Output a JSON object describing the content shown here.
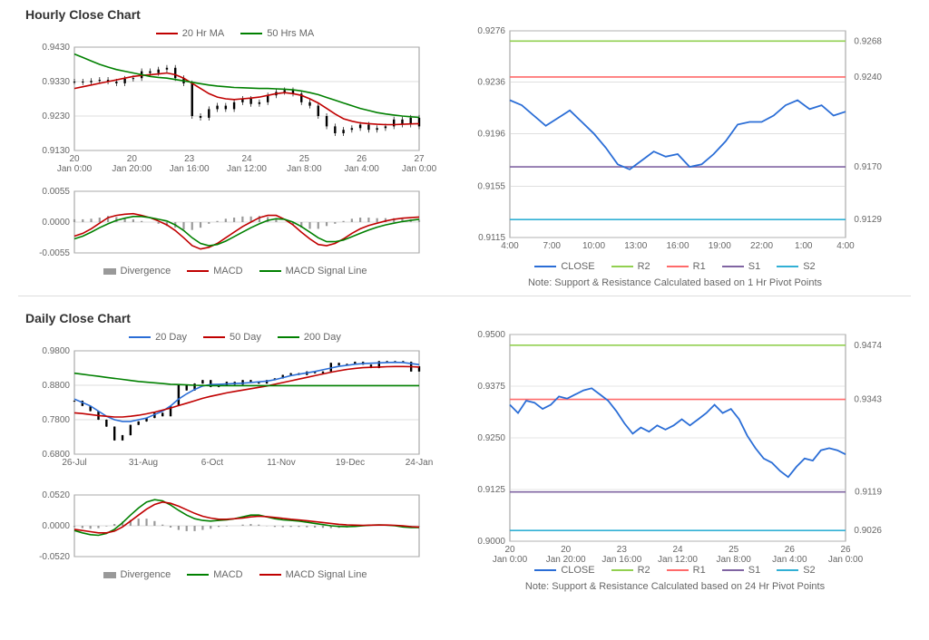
{
  "hourly": {
    "title": "Hourly Close Chart",
    "price": {
      "legend": [
        {
          "label": "20 Hr MA",
          "color": "#c00000"
        },
        {
          "label": "50 Hrs MA",
          "color": "#008000"
        }
      ],
      "ylim": [
        0.913,
        0.943
      ],
      "yticks": [
        0.913,
        0.923,
        0.933,
        0.943
      ],
      "xticks": [
        "20 Jan 0:00",
        "20 Jan 20:00",
        "23 Jan 16:00",
        "24 Jan 12:00",
        "25 Jan 8:00",
        "26 Jan 4:00",
        "27 Jan 0:00"
      ],
      "close": [
        0.933,
        0.9328,
        0.9332,
        0.9335,
        0.933,
        0.9325,
        0.9338,
        0.934,
        0.936,
        0.9355,
        0.9365,
        0.937,
        0.934,
        0.9325,
        0.923,
        0.9225,
        0.925,
        0.926,
        0.925,
        0.927,
        0.928,
        0.9265,
        0.927,
        0.929,
        0.93,
        0.9305,
        0.9295,
        0.927,
        0.926,
        0.923,
        0.92,
        0.918,
        0.919,
        0.9195,
        0.9205,
        0.919,
        0.9195,
        0.92,
        0.922,
        0.9205,
        0.9225,
        0.92
      ],
      "ma20": [
        0.931,
        0.9315,
        0.932,
        0.9325,
        0.933,
        0.9335,
        0.934,
        0.9345,
        0.9348,
        0.935,
        0.9352,
        0.9355,
        0.935,
        0.934,
        0.9325,
        0.931,
        0.9295,
        0.9285,
        0.928,
        0.9278,
        0.928,
        0.9282,
        0.9285,
        0.929,
        0.9295,
        0.9298,
        0.9295,
        0.929,
        0.928,
        0.9268,
        0.9252,
        0.9236,
        0.9222,
        0.9215,
        0.921,
        0.9208,
        0.9206,
        0.9205,
        0.9205,
        0.9206,
        0.9207,
        0.9208
      ],
      "ma50": [
        0.941,
        0.94,
        0.939,
        0.938,
        0.9372,
        0.9365,
        0.936,
        0.9355,
        0.935,
        0.9345,
        0.9342,
        0.934,
        0.9336,
        0.9332,
        0.9328,
        0.9324,
        0.932,
        0.9317,
        0.9315,
        0.9313,
        0.9312,
        0.9311,
        0.931,
        0.931,
        0.9309,
        0.9308,
        0.9306,
        0.9303,
        0.9298,
        0.9292,
        0.9284,
        0.9276,
        0.9268,
        0.926,
        0.9252,
        0.9246,
        0.924,
        0.9236,
        0.9233,
        0.923,
        0.9228,
        0.9226
      ],
      "colors": {
        "close": "#000000",
        "ma20": "#c00000",
        "ma50": "#008000",
        "grid": "#bbb",
        "frame": "#999"
      }
    },
    "macd": {
      "legend": [
        {
          "label": "Divergence",
          "type": "box",
          "color": "#999"
        },
        {
          "label": "MACD",
          "color": "#c00000"
        },
        {
          "label": "MACD Signal Line",
          "color": "#008000"
        }
      ],
      "ylim": [
        -0.0055,
        0.0055
      ],
      "yticks": [
        -0.0055,
        0.0,
        0.0055
      ],
      "macd": [
        -0.0025,
        -0.002,
        -0.0012,
        -0.0002,
        0.0008,
        0.0012,
        0.0014,
        0.0015,
        0.0012,
        0.0008,
        0.0002,
        -0.0005,
        -0.0015,
        -0.0028,
        -0.0042,
        -0.0048,
        -0.0045,
        -0.0038,
        -0.0028,
        -0.0018,
        -0.0008,
        0.0,
        0.0008,
        0.0012,
        0.0012,
        0.0005,
        -0.0005,
        -0.0018,
        -0.003,
        -0.004,
        -0.0042,
        -0.0038,
        -0.003,
        -0.002,
        -0.0012,
        -0.0006,
        -0.0002,
        0.0002,
        0.0005,
        0.0007,
        0.0008,
        0.0009
      ],
      "signal": [
        -0.003,
        -0.0025,
        -0.0018,
        -0.001,
        -0.0003,
        0.0003,
        0.0007,
        0.001,
        0.001,
        0.0008,
        0.0005,
        0.0002,
        -0.0005,
        -0.0015,
        -0.0028,
        -0.0038,
        -0.0042,
        -0.004,
        -0.0034,
        -0.0026,
        -0.0018,
        -0.001,
        -0.0003,
        0.0003,
        0.0006,
        0.0005,
        0.0,
        -0.0008,
        -0.0018,
        -0.0028,
        -0.0035,
        -0.0035,
        -0.0032,
        -0.0026,
        -0.002,
        -0.0014,
        -0.0009,
        -0.0005,
        -0.0002,
        0.0001,
        0.0003,
        0.0005
      ],
      "div": [
        0.0005,
        0.0005,
        0.0006,
        0.0008,
        0.0011,
        0.0009,
        0.0007,
        0.0005,
        0.0002,
        0.0,
        -0.0003,
        -0.0007,
        -0.001,
        -0.0013,
        -0.0014,
        -0.001,
        -0.0003,
        0.0002,
        0.0006,
        0.0008,
        0.001,
        0.001,
        0.0011,
        0.0009,
        0.0006,
        0.0,
        -0.0005,
        -0.001,
        -0.0012,
        -0.0012,
        -0.0007,
        -0.0003,
        0.0002,
        0.0006,
        0.0008,
        0.0008,
        0.0007,
        0.0007,
        0.0007,
        0.0006,
        0.0005,
        0.0004
      ]
    },
    "sr": {
      "ylim": [
        0.9115,
        0.9276
      ],
      "yticks": [
        0.9115,
        0.9155,
        0.9196,
        0.9236,
        0.9276
      ],
      "xticks": [
        "4:00",
        "7:00",
        "10:00",
        "13:00",
        "16:00",
        "19:00",
        "22:00",
        "1:00",
        "4:00"
      ],
      "close": [
        0.9222,
        0.9218,
        0.921,
        0.9202,
        0.9208,
        0.9214,
        0.9205,
        0.9196,
        0.9185,
        0.9172,
        0.9168,
        0.9175,
        0.9182,
        0.9178,
        0.918,
        0.917,
        0.9172,
        0.918,
        0.919,
        0.9203,
        0.9205,
        0.9205,
        0.921,
        0.9218,
        0.9222,
        0.9215,
        0.9218,
        0.921,
        0.9213
      ],
      "levels": [
        {
          "name": "R2",
          "v": 0.9268,
          "color": "#92d050"
        },
        {
          "name": "R1",
          "v": 0.924,
          "color": "#ff6a6a"
        },
        {
          "name": "S1",
          "v": 0.917,
          "color": "#8064a2"
        },
        {
          "name": "S2",
          "v": 0.9129,
          "color": "#31b0d5"
        }
      ],
      "legend": [
        {
          "label": "CLOSE",
          "color": "#2a6dd6"
        },
        {
          "label": "R2",
          "color": "#92d050"
        },
        {
          "label": "R1",
          "color": "#ff6a6a"
        },
        {
          "label": "S1",
          "color": "#8064a2"
        },
        {
          "label": "S2",
          "color": "#31b0d5"
        }
      ],
      "note": "Note: Support & Resistance Calculated based on 1 Hr Pivot Points",
      "close_color": "#2a6dd6"
    }
  },
  "daily": {
    "title": "Daily Close Chart",
    "price": {
      "legend": [
        {
          "label": "20 Day",
          "color": "#2a6dd6"
        },
        {
          "label": "50 Day",
          "color": "#c00000"
        },
        {
          "label": "200 Day",
          "color": "#008000"
        }
      ],
      "ylim": [
        0.68,
        0.98
      ],
      "yticks": [
        0.68,
        0.78,
        0.88,
        0.98
      ],
      "xticks": [
        "26-Jul",
        "31-Aug",
        "6-Oct",
        "11-Nov",
        "19-Dec",
        "24-Jan"
      ],
      "close": [
        0.835,
        0.82,
        0.805,
        0.78,
        0.76,
        0.72,
        0.735,
        0.765,
        0.775,
        0.785,
        0.8,
        0.79,
        0.82,
        0.88,
        0.865,
        0.885,
        0.895,
        0.875,
        0.88,
        0.89,
        0.882,
        0.895,
        0.89,
        0.885,
        0.895,
        0.9,
        0.91,
        0.915,
        0.91,
        0.92,
        0.915,
        0.92,
        0.945,
        0.938,
        0.942,
        0.948,
        0.94,
        0.93,
        0.95,
        0.947,
        0.95,
        0.948,
        0.92,
        0.935
      ],
      "ma20": [
        0.84,
        0.83,
        0.82,
        0.805,
        0.79,
        0.78,
        0.775,
        0.775,
        0.78,
        0.785,
        0.795,
        0.805,
        0.82,
        0.84,
        0.855,
        0.868,
        0.878,
        0.882,
        0.883,
        0.884,
        0.885,
        0.886,
        0.888,
        0.89,
        0.892,
        0.896,
        0.902,
        0.908,
        0.912,
        0.916,
        0.92,
        0.925,
        0.93,
        0.935,
        0.938,
        0.941,
        0.943,
        0.944,
        0.945,
        0.946,
        0.9465,
        0.946,
        0.943,
        0.94
      ],
      "ma50": [
        0.8,
        0.798,
        0.795,
        0.792,
        0.79,
        0.788,
        0.788,
        0.79,
        0.793,
        0.797,
        0.802,
        0.808,
        0.814,
        0.821,
        0.828,
        0.835,
        0.842,
        0.848,
        0.853,
        0.858,
        0.862,
        0.866,
        0.87,
        0.874,
        0.878,
        0.883,
        0.888,
        0.893,
        0.898,
        0.903,
        0.908,
        0.913,
        0.918,
        0.922,
        0.926,
        0.929,
        0.931,
        0.932,
        0.933,
        0.934,
        0.9345,
        0.9345,
        0.934,
        0.933
      ],
      "ma200": [
        0.915,
        0.912,
        0.909,
        0.906,
        0.903,
        0.9,
        0.897,
        0.894,
        0.891,
        0.889,
        0.887,
        0.885,
        0.883,
        0.882,
        0.881,
        0.88,
        0.8795,
        0.879,
        0.879,
        0.879,
        0.879,
        0.879,
        0.879,
        0.879,
        0.879,
        0.879,
        0.879,
        0.879,
        0.879,
        0.879,
        0.879,
        0.879,
        0.879,
        0.879,
        0.879,
        0.879,
        0.879,
        0.879,
        0.879,
        0.879,
        0.879,
        0.879,
        0.879,
        0.879
      ],
      "colors": {
        "close": "#000000",
        "ma20": "#2a6dd6",
        "ma50": "#c00000",
        "ma200": "#008000",
        "grid": "#bbb"
      }
    },
    "macd": {
      "legend": [
        {
          "label": "Divergence",
          "type": "box",
          "color": "#999"
        },
        {
          "label": "MACD",
          "color": "#008000"
        },
        {
          "label": "MACD Signal Line",
          "color": "#c00000"
        }
      ],
      "ylim": [
        -0.052,
        0.052
      ],
      "yticks": [
        -0.052,
        0.0,
        0.052
      ],
      "macd": [
        -0.008,
        -0.012,
        -0.015,
        -0.016,
        -0.013,
        -0.006,
        0.005,
        0.018,
        0.03,
        0.04,
        0.044,
        0.042,
        0.035,
        0.026,
        0.018,
        0.012,
        0.009,
        0.008,
        0.009,
        0.01,
        0.012,
        0.015,
        0.018,
        0.018,
        0.015,
        0.012,
        0.01,
        0.009,
        0.008,
        0.006,
        0.004,
        0.002,
        0.0,
        -0.001,
        -0.0015,
        -0.001,
        0.0,
        0.001,
        0.0015,
        0.001,
        0.0,
        -0.002,
        -0.003,
        -0.003
      ],
      "signal": [
        -0.006,
        -0.008,
        -0.01,
        -0.012,
        -0.012,
        -0.009,
        -0.002,
        0.008,
        0.018,
        0.028,
        0.036,
        0.04,
        0.038,
        0.033,
        0.027,
        0.021,
        0.016,
        0.013,
        0.011,
        0.011,
        0.012,
        0.013,
        0.015,
        0.016,
        0.0155,
        0.014,
        0.0125,
        0.011,
        0.01,
        0.0085,
        0.007,
        0.0055,
        0.004,
        0.0025,
        0.0015,
        0.001,
        0.0008,
        0.001,
        0.0012,
        0.0012,
        0.0008,
        -0.0002,
        -0.0015,
        -0.0022
      ],
      "div": [
        -0.002,
        -0.004,
        -0.005,
        -0.004,
        -0.001,
        0.003,
        0.007,
        0.01,
        0.012,
        0.012,
        0.008,
        0.002,
        -0.003,
        -0.007,
        -0.009,
        -0.009,
        -0.007,
        -0.005,
        -0.002,
        -0.001,
        0.0,
        0.002,
        0.003,
        0.002,
        -0.0005,
        -0.002,
        -0.0025,
        -0.002,
        -0.002,
        -0.0025,
        -0.003,
        -0.0035,
        -0.004,
        -0.0035,
        -0.003,
        -0.002,
        -0.0008,
        0.0,
        0.0003,
        -0.0002,
        -0.0008,
        -0.0018,
        -0.0015,
        -0.0008
      ]
    },
    "sr": {
      "ylim": [
        0.9,
        0.95
      ],
      "yticks": [
        0.9,
        0.9125,
        0.925,
        0.9375,
        0.95
      ],
      "xticks": [
        "20 Jan 0:00",
        "20 Jan 20:00",
        "23 Jan 16:00",
        "24 Jan 12:00",
        "25 Jan 8:00",
        "26 Jan 4:00",
        "26 Jan 0:00"
      ],
      "close": [
        0.933,
        0.931,
        0.934,
        0.9335,
        0.932,
        0.933,
        0.935,
        0.9345,
        0.9355,
        0.9365,
        0.937,
        0.9355,
        0.934,
        0.9315,
        0.9285,
        0.926,
        0.9275,
        0.9265,
        0.928,
        0.927,
        0.928,
        0.9295,
        0.928,
        0.9295,
        0.931,
        0.933,
        0.931,
        0.932,
        0.9295,
        0.9255,
        0.9225,
        0.92,
        0.919,
        0.917,
        0.9155,
        0.918,
        0.92,
        0.9195,
        0.922,
        0.9225,
        0.922,
        0.921
      ],
      "levels": [
        {
          "name": "R2",
          "v": 0.9474,
          "color": "#92d050"
        },
        {
          "name": "R1",
          "v": 0.9343,
          "color": "#ff6a6a"
        },
        {
          "name": "S1",
          "v": 0.9119,
          "color": "#8064a2"
        },
        {
          "name": "S2",
          "v": 0.9026,
          "color": "#31b0d5"
        }
      ],
      "legend": [
        {
          "label": "CLOSE",
          "color": "#2a6dd6"
        },
        {
          "label": "R2",
          "color": "#92d050"
        },
        {
          "label": "R1",
          "color": "#ff6a6a"
        },
        {
          "label": "S1",
          "color": "#8064a2"
        },
        {
          "label": "S2",
          "color": "#31b0d5"
        }
      ],
      "note": "Note: Support & Resistance Calculated based on 24 Hr Pivot Points",
      "close_color": "#2a6dd6"
    }
  }
}
